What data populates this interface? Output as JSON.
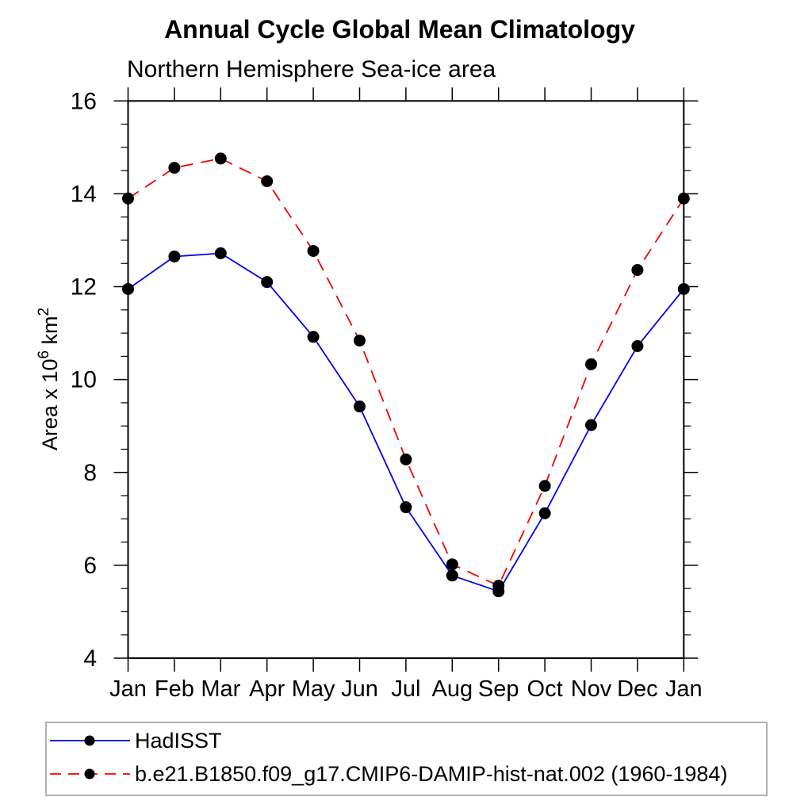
{
  "chart_data": {
    "type": "line",
    "title": "Annual Cycle Global Mean Climatology",
    "subtitle": "Northern Hemisphere Sea-ice area",
    "ylabel": "Area x 10^6 km^2",
    "ylabel_parts": [
      {
        "text": "Area x 10",
        "sup": false
      },
      {
        "text": "6",
        "sup": true
      },
      {
        "text": " km",
        "sup": false
      },
      {
        "text": "2",
        "sup": true
      }
    ],
    "categories": [
      "Jan",
      "Feb",
      "Mar",
      "Apr",
      "May",
      "Jun",
      "Jul",
      "Aug",
      "Sep",
      "Oct",
      "Nov",
      "Dec",
      "Jan"
    ],
    "ylim": [
      4,
      16
    ],
    "ytick_major": [
      4,
      6,
      8,
      10,
      12,
      14,
      16
    ],
    "ytick_minor_step": 0.5,
    "grid": false,
    "legend_position": "bottom-left-box",
    "colors": {
      "frame": "#000000",
      "tick": "#000000",
      "legend_border": "#999999",
      "marker": "#000000",
      "hadisst_line": "#0000ee",
      "model_line": "#f30000"
    },
    "series": [
      {
        "name": "HadISST",
        "color": "#0000ee",
        "line_style": "solid",
        "marker": "dot",
        "marker_color": "#000000",
        "values": [
          11.95,
          12.65,
          12.72,
          12.1,
          10.92,
          9.42,
          7.25,
          5.78,
          5.44,
          7.12,
          9.02,
          10.72,
          11.95
        ]
      },
      {
        "name": "b.e21.B1850.f09_g17.CMIP6-DAMIP-hist-nat.002 (1960-1984)",
        "color": "#f30000",
        "line_style": "dashed",
        "marker": "dot",
        "marker_color": "#000000",
        "values": [
          13.9,
          14.56,
          14.76,
          14.27,
          12.77,
          10.84,
          8.28,
          6.02,
          5.56,
          7.71,
          10.33,
          12.36,
          13.9
        ]
      }
    ]
  }
}
